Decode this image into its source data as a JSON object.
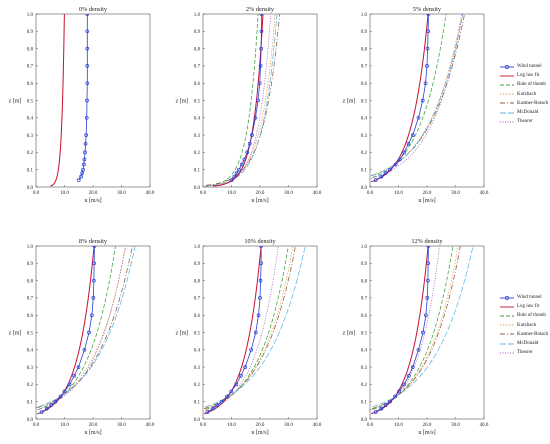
{
  "chart_data": {
    "type": "line",
    "xlabel": "u [m/s]",
    "ylabel": "z [m]",
    "xlim": [
      0,
      40
    ],
    "ylim": [
      0,
      1.0
    ],
    "xticks": [
      "0.0",
      "10.0",
      "20.0",
      "30.0",
      "40.0"
    ],
    "yticks": [
      "0.0",
      "0.1",
      "0.2",
      "0.3",
      "0.4",
      "0.5",
      "0.6",
      "0.7",
      "0.8",
      "0.9",
      "1.0"
    ],
    "grid": false,
    "legend_placement": "right of each row",
    "series_styles": {
      "Wind tunnel": {
        "color": "#2b3fd6",
        "dash": "",
        "marker": "circle"
      },
      "Log law fit": {
        "color": "#c8102e",
        "dash": ""
      },
      "Rule of thumb": {
        "color": "#3aa13a",
        "dash": "4 2"
      },
      "Kutzbach": {
        "color": "#e8a04a",
        "dash": "1.5 1.5"
      },
      "Kastner-Rotach": {
        "color": "#8a5a44",
        "dash": "5 2 1 2"
      },
      "McDonald": {
        "color": "#5fb6e4",
        "dash": "6 2"
      },
      "Theurer": {
        "color": "#9b59b6",
        "dash": "1 1.5"
      }
    },
    "wind_tunnel_z": [
      0.04,
      0.06,
      0.08,
      0.1,
      0.13,
      0.16,
      0.2,
      0.25,
      0.3,
      0.4,
      0.5,
      0.6,
      0.7,
      0.8,
      0.9,
      1.0
    ],
    "charts": [
      {
        "title": "0% density",
        "series": [
          {
            "name": "Wind tunnel",
            "u": [
              15.0,
              15.8,
              16.2,
              16.5,
              16.8,
              17.0,
              17.2,
              17.4,
              17.6,
              17.8,
              17.9,
              18.0,
              18.0,
              18.0,
              18.0,
              18.0
            ]
          },
          {
            "name": "Log law fit",
            "z0": 2e-05,
            "k": 0.92,
            "d": 0.0
          }
        ]
      },
      {
        "title": "2% density",
        "series": [
          {
            "name": "Wind tunnel",
            "u": [
              10.0,
              11.0,
              11.8,
              12.6,
              13.6,
              14.5,
              15.5,
              16.4,
              17.2,
              18.4,
              19.3,
              19.9,
              20.2,
              20.4,
              20.5,
              20.5
            ]
          },
          {
            "name": "Log law fit",
            "z0": 0.0017,
            "k": 3.3,
            "d": 0.0
          },
          {
            "name": "Rule of thumb",
            "z0": 0.004,
            "k": 3.5,
            "d": 0.0
          },
          {
            "name": "Kutzbach",
            "z0": 0.006,
            "k": 4.95,
            "d": 0.0
          },
          {
            "name": "Kastner-Rotach",
            "z0": 0.0082,
            "k": 5.6,
            "d": 0.0
          },
          {
            "name": "McDonald",
            "z0": 0.005,
            "k": 4.9,
            "d": 0.0
          },
          {
            "name": "Theurer",
            "z0": 0.0035,
            "k": 4.2,
            "d": 0.0
          }
        ]
      },
      {
        "title": "5% density",
        "series": [
          {
            "name": "Wind tunnel",
            "u": [
              2.0,
              4.0,
              5.5,
              7.0,
              9.0,
              10.5,
              12.0,
              13.5,
              15.0,
              17.0,
              18.5,
              19.5,
              20.0,
              20.2,
              20.4,
              20.5
            ]
          },
          {
            "name": "Log law fit",
            "z0": 0.028,
            "k": 5.7,
            "d": 0.0
          },
          {
            "name": "Rule of thumb",
            "z0": 0.05,
            "k": 8.9,
            "d": 0.0
          },
          {
            "name": "Kutzbach",
            "z0": 0.061,
            "k": 11.5,
            "d": 0.0
          },
          {
            "name": "Kastner-Rotach",
            "z0": 0.063,
            "k": 12.0,
            "d": 0.0
          },
          {
            "name": "McDonald",
            "z0": 0.062,
            "k": 11.7,
            "d": 0.0
          },
          {
            "name": "Theurer",
            "z0": 0.048,
            "k": 10.7,
            "d": 0.0
          }
        ]
      },
      {
        "title": "8% density",
        "series": [
          {
            "name": "Wind tunnel",
            "u": [
              2.0,
              3.8,
              5.3,
              6.8,
              8.6,
              10.0,
              11.8,
              13.4,
              14.9,
              17.0,
              18.6,
              19.6,
              20.1,
              20.3,
              20.4,
              20.5
            ]
          },
          {
            "name": "Log law fit",
            "z0": 0.028,
            "k": 5.7,
            "d": 0.0
          },
          {
            "name": "Rule of thumb",
            "z0": 0.05,
            "k": 9.3,
            "d": 0.0
          },
          {
            "name": "Kutzbach",
            "z0": 0.06,
            "k": 11.2,
            "d": 0.0
          },
          {
            "name": "Kastner-Rotach",
            "z0": 0.064,
            "k": 12.3,
            "d": 0.0
          },
          {
            "name": "McDonald",
            "z0": 0.066,
            "k": 12.8,
            "d": 0.0
          },
          {
            "name": "Theurer",
            "z0": 0.052,
            "k": 10.6,
            "d": 0.0
          }
        ]
      },
      {
        "title": "10% density",
        "series": [
          {
            "name": "Wind tunnel",
            "u": [
              1.5,
              3.5,
              5.0,
              6.5,
              8.4,
              9.9,
              11.7,
              13.3,
              14.8,
              16.9,
              18.5,
              19.5,
              20.0,
              20.2,
              20.4,
              20.4
            ]
          },
          {
            "name": "Log law fit",
            "z0": 0.028,
            "k": 5.7,
            "d": 0.0
          },
          {
            "name": "Rule of thumb",
            "z0": 0.05,
            "k": 10.0,
            "d": 0.0
          },
          {
            "name": "Kutzbach",
            "z0": 0.055,
            "k": 10.9,
            "d": 0.0
          },
          {
            "name": "Kastner-Rotach",
            "z0": 0.058,
            "k": 11.4,
            "d": 0.0
          },
          {
            "name": "McDonald",
            "z0": 0.066,
            "k": 13.2,
            "d": 0.0
          },
          {
            "name": "Theurer",
            "z0": 0.04,
            "k": 8.2,
            "d": 0.0
          }
        ]
      },
      {
        "title": "12% density",
        "series": [
          {
            "name": "Wind tunnel",
            "u": [
              2.0,
              4.0,
              5.5,
              7.0,
              8.8,
              10.2,
              12.0,
              13.6,
              15.0,
              17.0,
              18.6,
              19.6,
              20.1,
              20.3,
              20.4,
              20.5
            ]
          },
          {
            "name": "Log law fit",
            "z0": 0.028,
            "k": 5.7,
            "d": 0.0
          },
          {
            "name": "Rule of thumb",
            "z0": 0.05,
            "k": 9.7,
            "d": 0.0
          },
          {
            "name": "Kutzbach",
            "z0": 0.054,
            "k": 10.6,
            "d": 0.0
          },
          {
            "name": "Kastner-Rotach",
            "z0": 0.056,
            "k": 11.0,
            "d": 0.0
          },
          {
            "name": "McDonald",
            "z0": 0.066,
            "k": 13.3,
            "d": 0.0
          },
          {
            "name": "Theurer",
            "z0": 0.037,
            "k": 7.4,
            "d": 0.0
          }
        ]
      }
    ],
    "legends": [
      {
        "entries": [
          "Wind tunnel",
          "Log law fit",
          "Rule of thumb",
          "Kutzbach",
          "Kastner-Rotach",
          "McDonald",
          "Theurer"
        ]
      },
      {
        "entries": [
          "Wind tunnel",
          "Log law fit",
          "Rule of thumb",
          "Kutzbach",
          "Kastner-Rotach",
          "McDonald",
          "Theurer"
        ]
      }
    ]
  }
}
